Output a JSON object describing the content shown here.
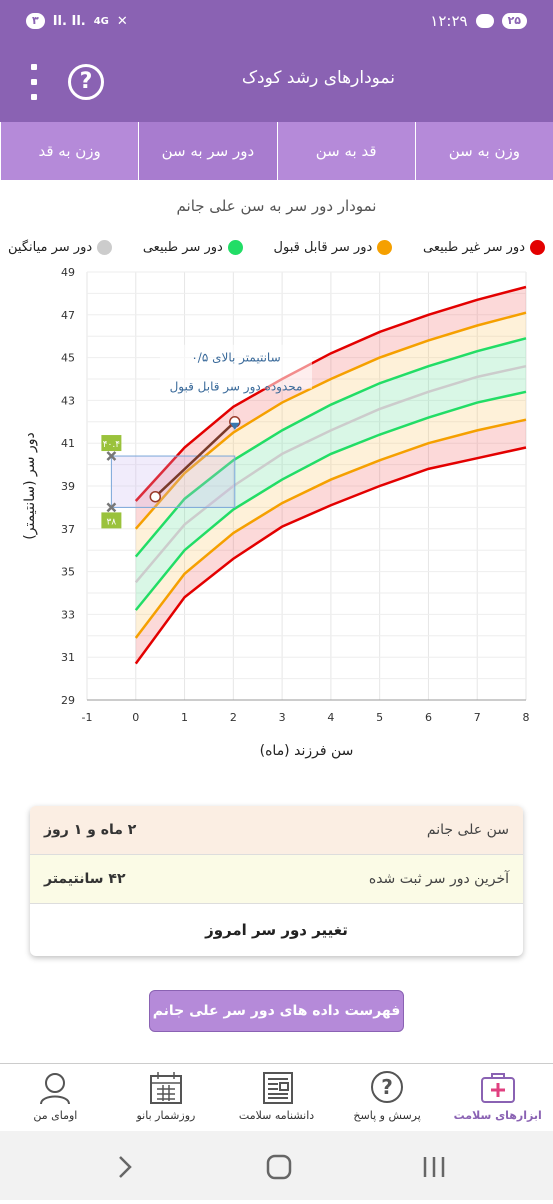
{
  "status": {
    "time": "۱۲:۲۹",
    "notif_count": "۲۵",
    "left_badge": "۳",
    "network": "4G"
  },
  "header": {
    "title": "نمودارهای رشد کودک",
    "help_label": "?"
  },
  "tabs": [
    "وزن به سن",
    "قد به سن",
    "دور سر به سن",
    "وزن به قد"
  ],
  "colors": {
    "primary": "#8a62b3",
    "tab": "#b58ad9",
    "red": "#e30000",
    "orange": "#f5a000",
    "green": "#22dd66",
    "gray": "#cccccc"
  },
  "chart_data": {
    "type": "line",
    "title": "نمودار دور سر به سن علی جانم",
    "xlabel": "سن فرزند (ماه)",
    "ylabel": "دور سر (سانتیمتر)",
    "xlim": [
      -1,
      8
    ],
    "ylim": [
      29,
      49
    ],
    "x_ticks": [
      "-1",
      "0",
      "1",
      "2",
      "3",
      "4",
      "5",
      "6",
      "7",
      "8"
    ],
    "y_ticks": [
      "29",
      "31",
      "33",
      "35",
      "37",
      "39",
      "41",
      "43",
      "45",
      "47",
      "49"
    ],
    "legend": [
      {
        "label": "دور سر غیر طبیعی",
        "color": "#e30000"
      },
      {
        "label": "دور سر قابل قبول",
        "color": "#f5a000"
      },
      {
        "label": "دور سر طبیعی",
        "color": "#22dd66"
      },
      {
        "label": "دور سر میانگین",
        "color": "#cccccc"
      }
    ],
    "x": [
      0,
      1,
      2,
      3,
      4,
      5,
      6,
      7,
      8
    ],
    "series": [
      {
        "values": [
          38.3,
          40.8,
          42.7,
          44.0,
          45.2,
          46.2,
          47.0,
          47.7,
          48.3
        ],
        "color": "#e30000"
      },
      {
        "values": [
          37.0,
          39.6,
          41.5,
          42.9,
          44.0,
          45.0,
          45.8,
          46.5,
          47.1
        ],
        "color": "#f5a000"
      },
      {
        "values": [
          35.7,
          38.4,
          40.2,
          41.6,
          42.8,
          43.8,
          44.6,
          45.3,
          45.9
        ],
        "color": "#22dd66"
      },
      {
        "values": [
          34.5,
          37.2,
          39.0,
          40.5,
          41.6,
          42.6,
          43.4,
          44.1,
          44.6
        ],
        "color": "#cccccc"
      },
      {
        "values": [
          33.2,
          36.0,
          37.9,
          39.3,
          40.5,
          41.4,
          42.2,
          42.9,
          43.4
        ],
        "color": "#22dd66"
      },
      {
        "values": [
          31.9,
          34.9,
          36.8,
          38.2,
          39.3,
          40.2,
          41.0,
          41.6,
          42.1
        ],
        "color": "#f5a000"
      },
      {
        "values": [
          30.7,
          33.8,
          35.6,
          37.1,
          38.1,
          39.0,
          39.8,
          40.3,
          40.8
        ],
        "color": "#e30000"
      }
    ],
    "measurements": {
      "x": [
        0.4,
        2.03
      ],
      "y": [
        38.5,
        42.0
      ]
    },
    "range_markers": [
      {
        "x": -0.5,
        "y": 40.4,
        "label": "۴۰.۴"
      },
      {
        "x": -0.5,
        "y": 38.0,
        "label": "۳۸"
      }
    ],
    "annotation": [
      "۰/۵ سانتیمتر بالای",
      "محدوده دور سر قابل قبول"
    ]
  },
  "info": {
    "age_label": "سن علی جانم",
    "age_value": "۲ ماه و ۱ روز",
    "last_label": "آخرین دور سر ثبت شده",
    "last_value": "۴۲ سانتیمتر",
    "change_label": "تغییر دور سر امروز"
  },
  "list_button": "فهرست داده های دور سر علی جانم",
  "bottom_nav": [
    {
      "label": "ابزارهای سلامت",
      "icon": "health-kit-icon"
    },
    {
      "label": "پرسش و پاسخ",
      "icon": "question-icon"
    },
    {
      "label": "دانشنامه سلامت",
      "icon": "newspaper-icon"
    },
    {
      "label": "روزشمار بانو",
      "icon": "calendar-icon"
    },
    {
      "label": "اومای من",
      "icon": "profile-icon"
    }
  ]
}
